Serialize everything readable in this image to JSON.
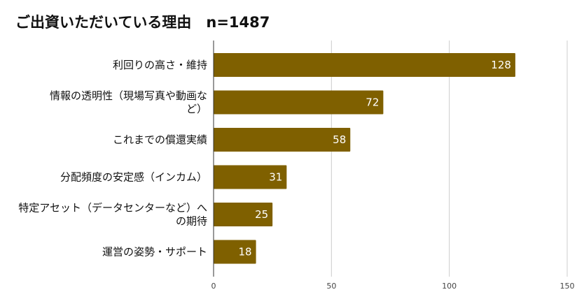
{
  "chart_data": {
    "type": "bar",
    "orientation": "horizontal",
    "title": "ご出資いただいている理由　n=1487",
    "categories": [
      [
        "利回りの高さ・維持"
      ],
      [
        "情報の透明性（現場写真や動画な",
        "ど）"
      ],
      [
        "これまでの償還実績"
      ],
      [
        "分配頻度の安定感（インカム）"
      ],
      [
        "特定アセット（データセンターなど）へ",
        "の期待"
      ],
      [
        "運営の姿勢・サポート"
      ]
    ],
    "values": [
      128,
      72,
      58,
      31,
      25,
      18
    ],
    "xlim": [
      0,
      150
    ],
    "xticks": [
      0,
      50,
      100,
      150
    ],
    "grid": true,
    "bar_color": "#7f6000",
    "data_labels": true
  }
}
